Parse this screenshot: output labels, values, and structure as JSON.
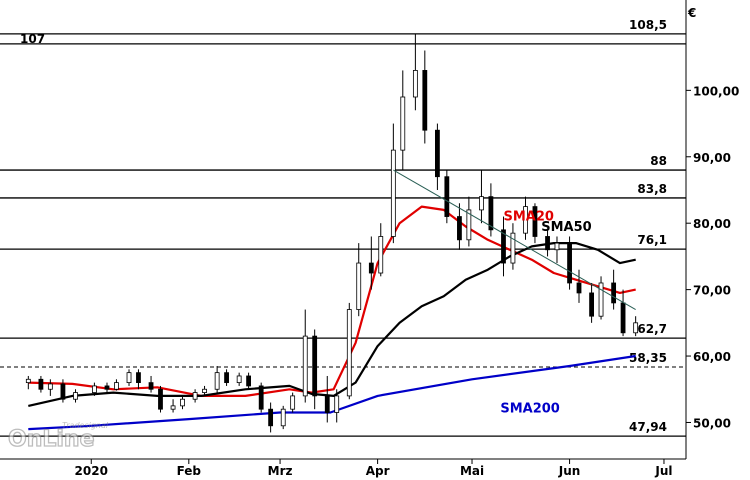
{
  "watermark": {
    "brand_top": "Tradesignal",
    "brand_main": "OnLine"
  },
  "chart_data": {
    "type": "candlestick",
    "currency_symbol": "€",
    "y_range": [
      44.5,
      113.0
    ],
    "y_ticks": [
      {
        "value": 50,
        "label": "50,00"
      },
      {
        "value": 60,
        "label": "60,00"
      },
      {
        "value": 70,
        "label": "70,00"
      },
      {
        "value": 80,
        "label": "80,00"
      },
      {
        "value": 90,
        "label": "90,00"
      },
      {
        "value": 100,
        "label": "100,00"
      }
    ],
    "x_ticks": [
      {
        "date": "2020-01-01",
        "label": "2020"
      },
      {
        "date": "2020-02-01",
        "label": "Feb"
      },
      {
        "date": "2020-03-01",
        "label": "Mrz"
      },
      {
        "date": "2020-04-01",
        "label": "Apr"
      },
      {
        "date": "2020-05-01",
        "label": "Mai"
      },
      {
        "date": "2020-06-01",
        "label": "Jun"
      },
      {
        "date": "2020-07-01",
        "label": "Jul"
      }
    ],
    "horizontal_levels": [
      {
        "value": 108.5,
        "label": "108,5",
        "style": "solid"
      },
      {
        "value": 107,
        "label": "107",
        "style": "solid",
        "label_side": "left"
      },
      {
        "value": 88,
        "label": "88",
        "style": "solid"
      },
      {
        "value": 83.8,
        "label": "83,8",
        "style": "solid"
      },
      {
        "value": 76.1,
        "label": "76,1",
        "style": "solid"
      },
      {
        "value": 62.7,
        "label": "62,7",
        "style": "solid"
      },
      {
        "value": 58.35,
        "label": "58,35",
        "style": "dashed"
      },
      {
        "value": 47.94,
        "label": "47,94",
        "style": "solid"
      }
    ],
    "trendline": {
      "from": {
        "date": "2020-04-06",
        "value": 88
      },
      "to": {
        "date": "2020-06-22",
        "value": 67
      }
    },
    "series": [
      {
        "name": "SMA20",
        "color": "#e00000",
        "points": [
          [
            "2019-12-12",
            56.0
          ],
          [
            "2019-12-26",
            55.8
          ],
          [
            "2020-01-08",
            55.0
          ],
          [
            "2020-01-22",
            55.3
          ],
          [
            "2020-02-05",
            54.0
          ],
          [
            "2020-02-19",
            54.0
          ],
          [
            "2020-03-04",
            55.0
          ],
          [
            "2020-03-11",
            54.5
          ],
          [
            "2020-03-18",
            55.0
          ],
          [
            "2020-03-25",
            62.0
          ],
          [
            "2020-04-01",
            74.0
          ],
          [
            "2020-04-08",
            80.0
          ],
          [
            "2020-04-15",
            82.5
          ],
          [
            "2020-04-22",
            82.0
          ],
          [
            "2020-04-29",
            79.5
          ],
          [
            "2020-05-06",
            77.5
          ],
          [
            "2020-05-13",
            76.0
          ],
          [
            "2020-05-20",
            74.5
          ],
          [
            "2020-05-27",
            72.5
          ],
          [
            "2020-06-03",
            71.5
          ],
          [
            "2020-06-10",
            70.5
          ],
          [
            "2020-06-17",
            69.5
          ],
          [
            "2020-06-22",
            70.0
          ]
        ]
      },
      {
        "name": "SMA50",
        "color": "#000000",
        "points": [
          [
            "2019-12-12",
            52.5
          ],
          [
            "2019-12-26",
            54.0
          ],
          [
            "2020-01-08",
            54.5
          ],
          [
            "2020-01-22",
            54.0
          ],
          [
            "2020-02-05",
            54.0
          ],
          [
            "2020-02-19",
            55.0
          ],
          [
            "2020-03-04",
            55.5
          ],
          [
            "2020-03-11",
            54.3
          ],
          [
            "2020-03-18",
            54.0
          ],
          [
            "2020-03-25",
            56.0
          ],
          [
            "2020-04-01",
            61.5
          ],
          [
            "2020-04-08",
            65.0
          ],
          [
            "2020-04-15",
            67.5
          ],
          [
            "2020-04-22",
            69.0
          ],
          [
            "2020-04-29",
            71.5
          ],
          [
            "2020-05-06",
            73.0
          ],
          [
            "2020-05-13",
            75.0
          ],
          [
            "2020-05-20",
            76.5
          ],
          [
            "2020-05-27",
            77.0
          ],
          [
            "2020-06-03",
            77.0
          ],
          [
            "2020-06-10",
            76.0
          ],
          [
            "2020-06-17",
            74.0
          ],
          [
            "2020-06-22",
            74.5
          ]
        ]
      },
      {
        "name": "SMA200",
        "color": "#0000c8",
        "points": [
          [
            "2019-12-12",
            49.0
          ],
          [
            "2020-01-01",
            49.5
          ],
          [
            "2020-02-01",
            50.5
          ],
          [
            "2020-03-01",
            51.5
          ],
          [
            "2020-03-17",
            51.5
          ],
          [
            "2020-04-01",
            54.0
          ],
          [
            "2020-05-01",
            56.5
          ],
          [
            "2020-06-01",
            58.5
          ],
          [
            "2020-06-22",
            60.0
          ]
        ]
      }
    ],
    "ohlc": [
      [
        "2019-12-12",
        56,
        57,
        55,
        56.5
      ],
      [
        "2019-12-16",
        56.5,
        57,
        54.5,
        55
      ],
      [
        "2019-12-19",
        55,
        56.5,
        54,
        55.8
      ],
      [
        "2019-12-23",
        55.8,
        56.5,
        53,
        53.5
      ],
      [
        "2019-12-27",
        53.5,
        55,
        53,
        54.5
      ],
      [
        "2020-01-02",
        54.5,
        56,
        54,
        55.5
      ],
      [
        "2020-01-06",
        55.5,
        56,
        54.5,
        55
      ],
      [
        "2020-01-09",
        55,
        56.5,
        54.8,
        56
      ],
      [
        "2020-01-13",
        56,
        58,
        55.5,
        57.5
      ],
      [
        "2020-01-16",
        57.5,
        58,
        55,
        56
      ],
      [
        "2020-01-20",
        56,
        57,
        54.5,
        55
      ],
      [
        "2020-01-23",
        55,
        55.5,
        51.5,
        52
      ],
      [
        "2020-01-27",
        52,
        53.5,
        51.5,
        52.5
      ],
      [
        "2020-01-30",
        52.5,
        54,
        52,
        53.5
      ],
      [
        "2020-02-03",
        53.5,
        55,
        53,
        54.5
      ],
      [
        "2020-02-06",
        54.5,
        55.5,
        54,
        55
      ],
      [
        "2020-02-10",
        55,
        58.5,
        54.5,
        57.5
      ],
      [
        "2020-02-13",
        57.5,
        58,
        55.5,
        56
      ],
      [
        "2020-02-17",
        56,
        57.5,
        55.5,
        57
      ],
      [
        "2020-02-20",
        57,
        57.5,
        55,
        55.5
      ],
      [
        "2020-02-24",
        55.5,
        56,
        51.5,
        52
      ],
      [
        "2020-02-27",
        52,
        53,
        48.5,
        49.5
      ],
      [
        "2020-03-02",
        49.5,
        52.5,
        49,
        52
      ],
      [
        "2020-03-05",
        52,
        54.5,
        51.5,
        54
      ],
      [
        "2020-03-09",
        54,
        67,
        53,
        63
      ],
      [
        "2020-03-12",
        63,
        64,
        52,
        54
      ],
      [
        "2020-03-16",
        54,
        57,
        50,
        51.5
      ],
      [
        "2020-03-19",
        51.5,
        55,
        50,
        54
      ],
      [
        "2020-03-23",
        54,
        68,
        53.5,
        67
      ],
      [
        "2020-03-26",
        67,
        77,
        66,
        74
      ],
      [
        "2020-03-30",
        74,
        78,
        70,
        72.5
      ],
      [
        "2020-04-02",
        72.5,
        80,
        72,
        78
      ],
      [
        "2020-04-06",
        78,
        95,
        77,
        91
      ],
      [
        "2020-04-09",
        91,
        103,
        88,
        99
      ],
      [
        "2020-04-13",
        99,
        108.5,
        97,
        103
      ],
      [
        "2020-04-16",
        103,
        106,
        92,
        94
      ],
      [
        "2020-04-20",
        94,
        95,
        85,
        87
      ],
      [
        "2020-04-23",
        87,
        88,
        80,
        81
      ],
      [
        "2020-04-27",
        81,
        83,
        76,
        77.5
      ],
      [
        "2020-04-30",
        77.5,
        84,
        76.5,
        82
      ],
      [
        "2020-05-04",
        82,
        88,
        80,
        84
      ],
      [
        "2020-05-07",
        84,
        86,
        78,
        79
      ],
      [
        "2020-05-11",
        79,
        81,
        72,
        74
      ],
      [
        "2020-05-14",
        74,
        80,
        73,
        78.5
      ],
      [
        "2020-05-18",
        78.5,
        84,
        77.5,
        82.5
      ],
      [
        "2020-05-21",
        82.5,
        83,
        77,
        78
      ],
      [
        "2020-05-25",
        78,
        79,
        75,
        76
      ],
      [
        "2020-05-28",
        76,
        78,
        74,
        77
      ],
      [
        "2020-06-01",
        77,
        78,
        70,
        71
      ],
      [
        "2020-06-04",
        71,
        73,
        68,
        69.5
      ],
      [
        "2020-06-08",
        69.5,
        71,
        65,
        66
      ],
      [
        "2020-06-11",
        66,
        72,
        65.5,
        71
      ],
      [
        "2020-06-15",
        71,
        73,
        67,
        68
      ],
      [
        "2020-06-18",
        68,
        70,
        63,
        63.5
      ],
      [
        "2020-06-22",
        63.5,
        66,
        63,
        65
      ]
    ]
  },
  "overlay_labels": [
    {
      "series": "SMA20",
      "text": "SMA20",
      "color": "#e00000"
    },
    {
      "series": "SMA50",
      "text": "SMA50",
      "color": "#000000"
    },
    {
      "series": "SMA200",
      "text": "SMA200",
      "color": "#0000c8"
    }
  ]
}
